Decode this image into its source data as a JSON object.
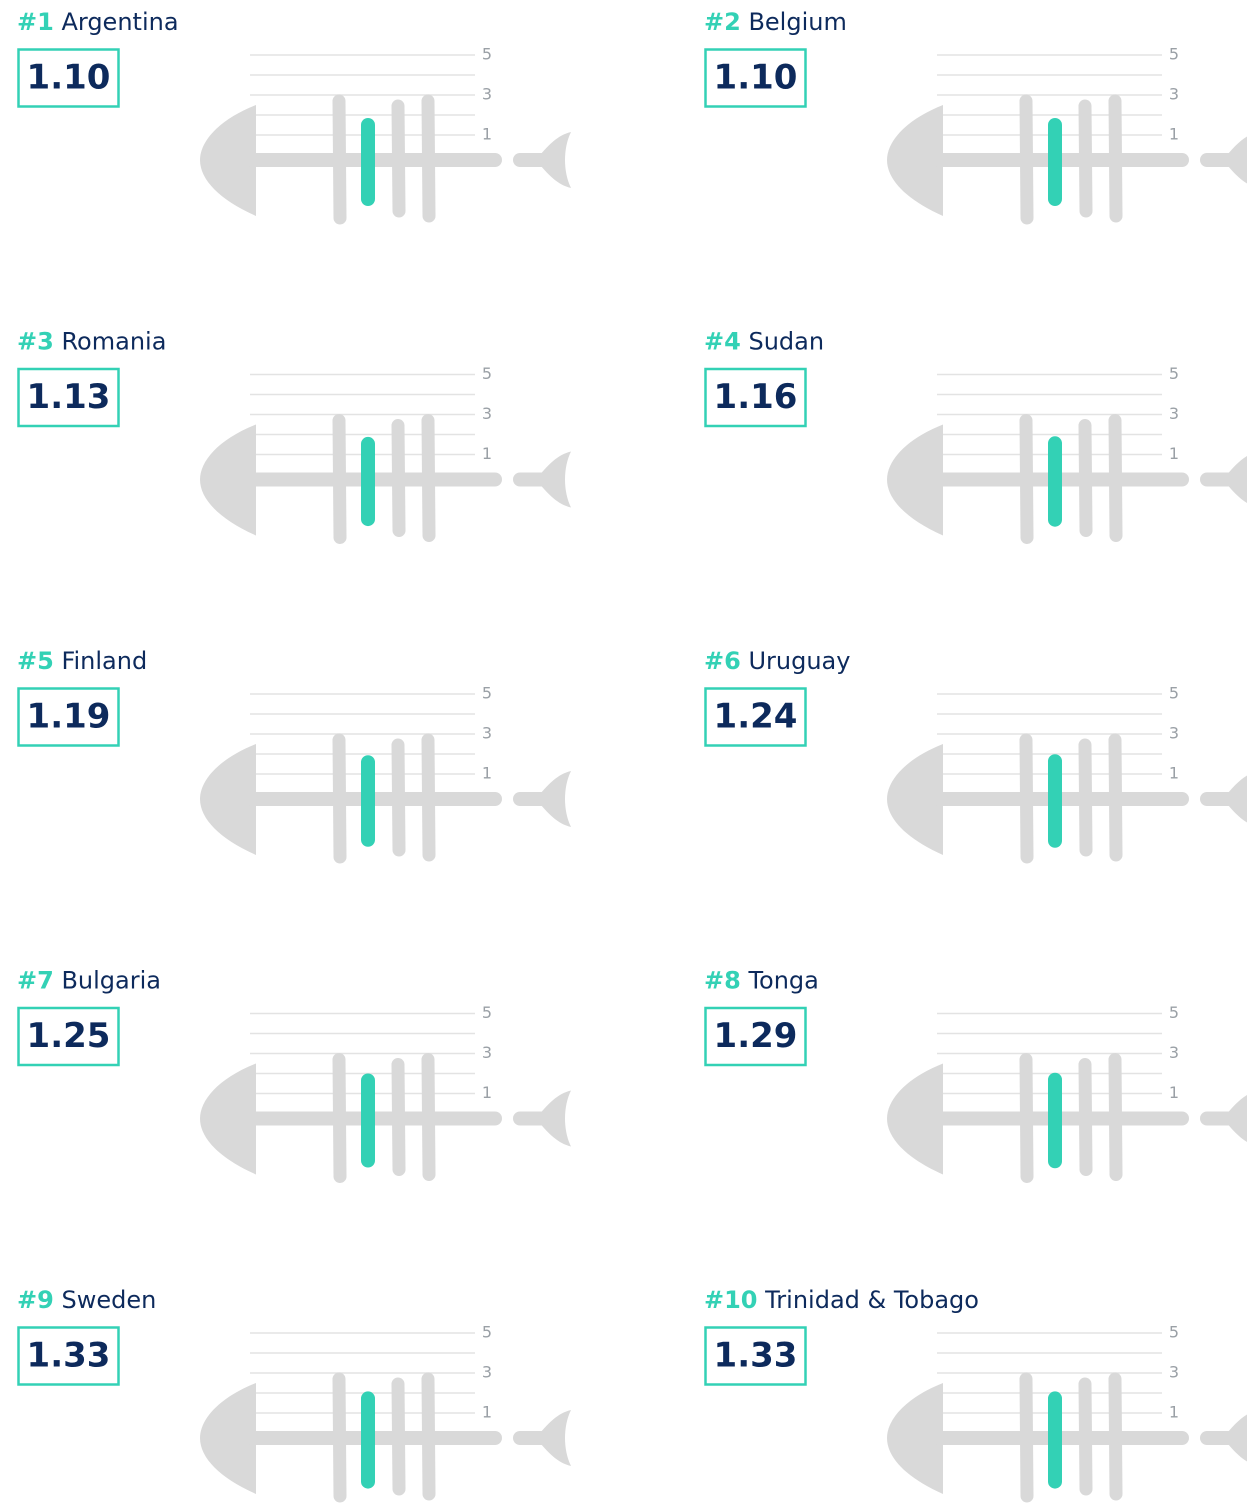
{
  "chart_data": {
    "type": "fishbone",
    "yticks": [
      1,
      3,
      5
    ],
    "color": "#33d1b5",
    "panels": [
      {
        "rank": "#1",
        "country": "Argentina",
        "value": 1.1,
        "value_label": "1.10"
      },
      {
        "rank": "#2",
        "country": "Belgium",
        "value": 1.1,
        "value_label": "1.10"
      },
      {
        "rank": "#3",
        "country": "Romania",
        "value": 1.13,
        "value_label": "1.13"
      },
      {
        "rank": "#4",
        "country": "Sudan",
        "value": 1.16,
        "value_label": "1.16"
      },
      {
        "rank": "#5",
        "country": "Finland",
        "value": 1.19,
        "value_label": "1.19"
      },
      {
        "rank": "#6",
        "country": "Uruguay",
        "value": 1.24,
        "value_label": "1.24"
      },
      {
        "rank": "#7",
        "country": "Bulgaria",
        "value": 1.25,
        "value_label": "1.25"
      },
      {
        "rank": "#8",
        "country": "Tonga",
        "value": 1.29,
        "value_label": "1.29"
      },
      {
        "rank": "#9",
        "country": "Sweden",
        "value": 1.33,
        "value_label": "1.33"
      },
      {
        "rank": "#10",
        "country": "Trinidad & Tobago",
        "value": 1.33,
        "value_label": "1.33"
      }
    ]
  }
}
